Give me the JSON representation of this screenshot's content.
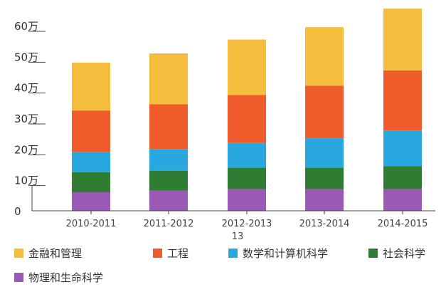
{
  "chart_data": {
    "type": "bar",
    "stacked": true,
    "categories": [
      "2010-2011",
      "2011-2012",
      "2012-2013",
      "2013-2014",
      "2014-2015"
    ],
    "x_extra_label": "13",
    "y_ticks": [
      "0",
      "10万",
      "20万",
      "30万",
      "40万",
      "50万",
      "60万"
    ],
    "ylim": [
      0,
      66
    ],
    "grid": false,
    "legend_position": "bottom",
    "series": [
      {
        "name": "物理和生命科学",
        "color": "#9b59b6",
        "values": [
          6,
          6.5,
          7,
          7,
          7
        ]
      },
      {
        "name": "社会科学",
        "color": "#2e7d32",
        "values": [
          6.5,
          6.5,
          7,
          7,
          7.5
        ]
      },
      {
        "name": "数学和计算机科学",
        "color": "#29a8e0",
        "values": [
          6.5,
          7,
          8,
          9.5,
          11.5
        ]
      },
      {
        "name": "工程",
        "color": "#ef5b2b",
        "values": [
          13.5,
          14.5,
          15.5,
          17,
          19.5
        ]
      },
      {
        "name": "金融和管理",
        "color": "#f5bd3d",
        "values": [
          15.5,
          16.5,
          18,
          19,
          20
        ]
      }
    ]
  },
  "legend": [
    {
      "name": "金融和管理",
      "color": "#f5bd3d"
    },
    {
      "name": "工程",
      "color": "#ef5b2b"
    },
    {
      "name": "数学和计算机科学",
      "color": "#29a8e0"
    },
    {
      "name": "社会科学",
      "color": "#2e7d32"
    },
    {
      "name": "物理和生命科学",
      "color": "#9b59b6"
    }
  ]
}
